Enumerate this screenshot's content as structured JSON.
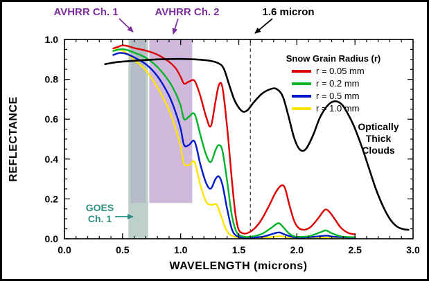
{
  "figure": {
    "background": "#ffffff",
    "border_color": "#000000"
  },
  "annotations": {
    "avhrr1": "AVHRR Ch. 1",
    "avhrr2": "AVHRR Ch. 2",
    "micron16": "1.6 micron",
    "goes_lines": [
      "GOES",
      "Ch. 1"
    ],
    "clouds_lines": [
      "Optically",
      "Thick",
      "Clouds"
    ],
    "purple": "#7b2f9b",
    "teal": "#2f8e82",
    "black": "#000000"
  },
  "chart_data": {
    "type": "line",
    "title": "",
    "xlabel": "WAVELENGTH (microns)",
    "ylabel": "REFLECTANCE",
    "xlim": [
      0.0,
      3.0
    ],
    "ylim": [
      0.0,
      1.0
    ],
    "x_ticks": [
      0.0,
      0.5,
      1.0,
      1.5,
      2.0,
      2.5,
      3.0
    ],
    "x_tick_labels": [
      "0.0",
      "0.5",
      "1.0",
      "1.5",
      "2.0",
      "2.5",
      "3.0"
    ],
    "y_ticks": [
      0.0,
      0.2,
      0.4,
      0.6,
      0.8,
      1.0
    ],
    "y_tick_labels": [
      "0.0",
      "0.2",
      "0.4",
      "0.6",
      "0.8",
      "1.0"
    ],
    "minor_x_step": 0.1,
    "minor_y_step": 0.05,
    "grid": false,
    "legend_title": "Snow Grain Radius (r)",
    "legend_position": "upper right inside",
    "vline": {
      "x": 1.6,
      "style": "dashed",
      "color": "#555555"
    },
    "bands": [
      {
        "label": "GOES Ch. 1",
        "x0": 0.55,
        "x1": 0.72,
        "y0": 0.0,
        "y1": 1.0,
        "color": "rgba(110,150,142,0.45)"
      },
      {
        "label": "AVHRR Ch. 1",
        "x0": 0.57,
        "x1": 0.7,
        "y0": 0.18,
        "y1": 1.0,
        "color": "rgba(150,100,180,0.18)"
      },
      {
        "label": "AVHRR Ch. 2",
        "x0": 0.73,
        "x1": 1.1,
        "y0": 0.18,
        "y1": 1.0,
        "color": "rgba(150,100,180,0.45)"
      }
    ],
    "series": [
      {
        "name": "r = 0.05 mm",
        "color": "#dd0000",
        "width": 2.4,
        "points": [
          [
            0.42,
            0.955
          ],
          [
            0.46,
            0.963
          ],
          [
            0.5,
            0.97
          ],
          [
            0.55,
            0.966
          ],
          [
            0.6,
            0.957
          ],
          [
            0.7,
            0.944
          ],
          [
            0.8,
            0.924
          ],
          [
            0.9,
            0.888
          ],
          [
            0.96,
            0.853
          ],
          [
            1.0,
            0.812
          ],
          [
            1.03,
            0.778
          ],
          [
            1.07,
            0.788
          ],
          [
            1.12,
            0.792
          ],
          [
            1.17,
            0.715
          ],
          [
            1.22,
            0.61
          ],
          [
            1.26,
            0.565
          ],
          [
            1.3,
            0.69
          ],
          [
            1.33,
            0.773
          ],
          [
            1.36,
            0.758
          ],
          [
            1.4,
            0.56
          ],
          [
            1.44,
            0.3
          ],
          [
            1.47,
            0.13
          ],
          [
            1.5,
            0.045
          ],
          [
            1.55,
            0.026
          ],
          [
            1.6,
            0.036
          ],
          [
            1.65,
            0.06
          ],
          [
            1.7,
            0.1
          ],
          [
            1.76,
            0.165
          ],
          [
            1.82,
            0.235
          ],
          [
            1.87,
            0.268
          ],
          [
            1.9,
            0.25
          ],
          [
            1.94,
            0.16
          ],
          [
            1.98,
            0.085
          ],
          [
            2.02,
            0.052
          ],
          [
            2.07,
            0.046
          ],
          [
            2.12,
            0.06
          ],
          [
            2.18,
            0.1
          ],
          [
            2.24,
            0.145
          ],
          [
            2.28,
            0.135
          ],
          [
            2.33,
            0.095
          ],
          [
            2.38,
            0.055
          ],
          [
            2.44,
            0.03
          ],
          [
            2.5,
            0.022
          ]
        ]
      },
      {
        "name": "r = 0.2 mm",
        "color": "#00b42a",
        "width": 2.4,
        "points": [
          [
            0.42,
            0.942
          ],
          [
            0.47,
            0.95
          ],
          [
            0.52,
            0.95
          ],
          [
            0.6,
            0.934
          ],
          [
            0.7,
            0.908
          ],
          [
            0.8,
            0.862
          ],
          [
            0.9,
            0.79
          ],
          [
            0.96,
            0.726
          ],
          [
            1.0,
            0.668
          ],
          [
            1.03,
            0.6
          ],
          [
            1.07,
            0.612
          ],
          [
            1.12,
            0.625
          ],
          [
            1.17,
            0.52
          ],
          [
            1.22,
            0.42
          ],
          [
            1.26,
            0.385
          ],
          [
            1.3,
            0.445
          ],
          [
            1.33,
            0.47
          ],
          [
            1.36,
            0.44
          ],
          [
            1.4,
            0.29
          ],
          [
            1.44,
            0.12
          ],
          [
            1.48,
            0.035
          ],
          [
            1.53,
            0.012
          ],
          [
            1.6,
            0.01
          ],
          [
            1.7,
            0.025
          ],
          [
            1.78,
            0.055
          ],
          [
            1.84,
            0.078
          ],
          [
            1.88,
            0.06
          ],
          [
            1.93,
            0.028
          ],
          [
            1.98,
            0.012
          ],
          [
            2.05,
            0.01
          ],
          [
            2.12,
            0.015
          ],
          [
            2.2,
            0.032
          ],
          [
            2.25,
            0.042
          ],
          [
            2.3,
            0.028
          ],
          [
            2.38,
            0.012
          ],
          [
            2.5,
            0.008
          ]
        ]
      },
      {
        "name": "r = 0.5 mm",
        "color": "#0018cc",
        "width": 2.4,
        "points": [
          [
            0.42,
            0.922
          ],
          [
            0.47,
            0.932
          ],
          [
            0.52,
            0.93
          ],
          [
            0.6,
            0.91
          ],
          [
            0.7,
            0.876
          ],
          [
            0.8,
            0.816
          ],
          [
            0.9,
            0.718
          ],
          [
            0.96,
            0.628
          ],
          [
            1.0,
            0.552
          ],
          [
            1.03,
            0.47
          ],
          [
            1.07,
            0.47
          ],
          [
            1.12,
            0.488
          ],
          [
            1.17,
            0.372
          ],
          [
            1.22,
            0.278
          ],
          [
            1.26,
            0.252
          ],
          [
            1.3,
            0.3
          ],
          [
            1.33,
            0.312
          ],
          [
            1.36,
            0.27
          ],
          [
            1.4,
            0.15
          ],
          [
            1.44,
            0.05
          ],
          [
            1.48,
            0.015
          ],
          [
            1.55,
            0.006
          ],
          [
            1.7,
            0.01
          ],
          [
            1.8,
            0.026
          ],
          [
            1.85,
            0.032
          ],
          [
            1.9,
            0.02
          ],
          [
            2.0,
            0.006
          ],
          [
            2.15,
            0.01
          ],
          [
            2.25,
            0.016
          ],
          [
            2.32,
            0.01
          ],
          [
            2.5,
            0.005
          ]
        ]
      },
      {
        "name": "r = 1.0 mm",
        "color": "#ffe400",
        "width": 2.4,
        "points": [
          [
            0.44,
            0.952
          ],
          [
            0.5,
            0.944
          ],
          [
            0.56,
            0.918
          ],
          [
            0.62,
            0.888
          ],
          [
            0.7,
            0.845
          ],
          [
            0.8,
            0.76
          ],
          [
            0.9,
            0.645
          ],
          [
            0.96,
            0.545
          ],
          [
            1.0,
            0.462
          ],
          [
            1.03,
            0.375
          ],
          [
            1.08,
            0.372
          ],
          [
            1.12,
            0.385
          ],
          [
            1.17,
            0.268
          ],
          [
            1.22,
            0.185
          ],
          [
            1.27,
            0.17
          ],
          [
            1.31,
            0.172
          ],
          [
            1.35,
            0.11
          ],
          [
            1.39,
            0.048
          ],
          [
            1.43,
            0.018
          ],
          [
            1.5,
            0.006
          ],
          [
            1.65,
            0.004
          ],
          [
            1.8,
            0.01
          ],
          [
            1.86,
            0.013
          ],
          [
            1.95,
            0.004
          ],
          [
            2.1,
            0.003
          ],
          [
            2.25,
            0.006
          ],
          [
            2.4,
            0.003
          ],
          [
            2.5,
            0.003
          ]
        ]
      },
      {
        "name": "Optically Thick Clouds",
        "color": "#000000",
        "width": 2.6,
        "points": [
          [
            0.35,
            0.876
          ],
          [
            0.45,
            0.886
          ],
          [
            0.6,
            0.893
          ],
          [
            0.8,
            0.9
          ],
          [
            1.0,
            0.902
          ],
          [
            1.15,
            0.899
          ],
          [
            1.25,
            0.893
          ],
          [
            1.32,
            0.882
          ],
          [
            1.37,
            0.855
          ],
          [
            1.42,
            0.768
          ],
          [
            1.46,
            0.7
          ],
          [
            1.5,
            0.658
          ],
          [
            1.54,
            0.637
          ],
          [
            1.58,
            0.648
          ],
          [
            1.63,
            0.685
          ],
          [
            1.7,
            0.728
          ],
          [
            1.78,
            0.752
          ],
          [
            1.83,
            0.75
          ],
          [
            1.88,
            0.712
          ],
          [
            1.93,
            0.61
          ],
          [
            1.98,
            0.5
          ],
          [
            2.03,
            0.445
          ],
          [
            2.08,
            0.452
          ],
          [
            2.14,
            0.52
          ],
          [
            2.2,
            0.61
          ],
          [
            2.27,
            0.672
          ],
          [
            2.33,
            0.69
          ],
          [
            2.39,
            0.672
          ],
          [
            2.45,
            0.615
          ],
          [
            2.5,
            0.553
          ],
          [
            2.56,
            0.46
          ],
          [
            2.62,
            0.355
          ],
          [
            2.68,
            0.25
          ],
          [
            2.74,
            0.165
          ],
          [
            2.8,
            0.1
          ],
          [
            2.86,
            0.062
          ],
          [
            2.92,
            0.048
          ],
          [
            2.96,
            0.045
          ]
        ]
      }
    ]
  }
}
